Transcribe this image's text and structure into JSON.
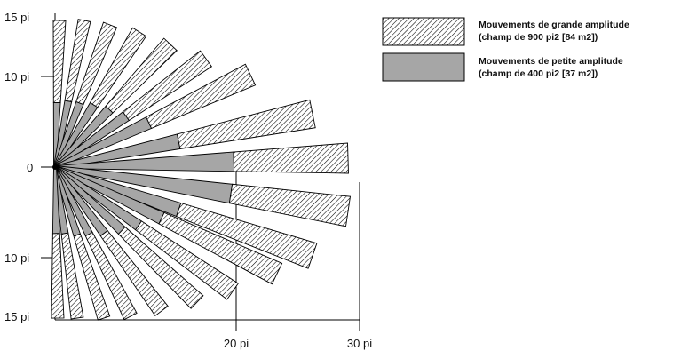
{
  "y_axis": {
    "top_label": "15 pi",
    "upper_label": "10 pi",
    "center_label": "0",
    "lower_label": "10 pi",
    "bottom_label": "15 pi"
  },
  "x_axis": {
    "label_20": "20 pi",
    "label_30": "30 pi"
  },
  "legend": {
    "large": {
      "line1": "Mouvements de grande amplitude",
      "line2": "(champ de 900 pi2 [84 m2])",
      "pattern": "hatched"
    },
    "small": {
      "line1": "Mouvements de petite amplitude",
      "line2": "(champ de 400 pi2 [37 m2])",
      "color": "#a6a6a6"
    }
  },
  "colors": {
    "hatch_line": "#000000",
    "small_fill": "#a6a6a6",
    "outline": "#000000"
  }
}
